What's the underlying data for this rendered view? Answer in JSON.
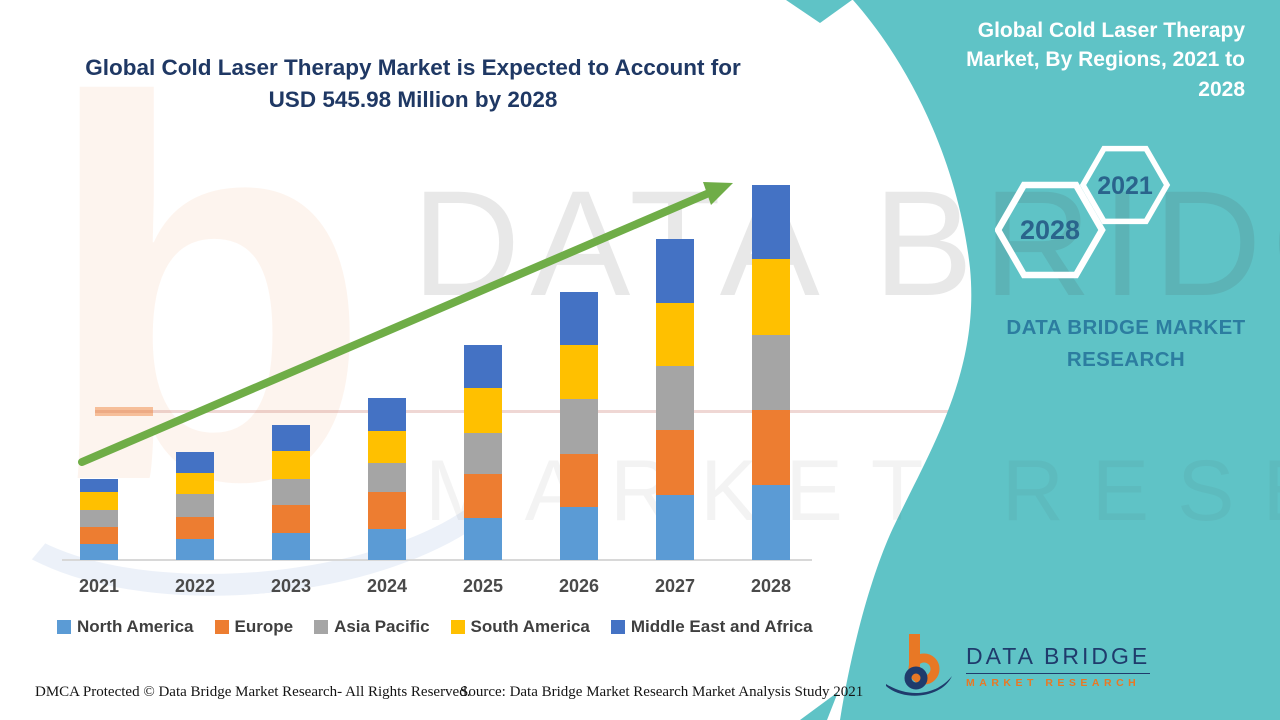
{
  "header": {
    "title": "Global Cold Laser Therapy Market is Expected to Account for USD 545.98 Million by 2028"
  },
  "sidebar": {
    "title": "Global Cold Laser Therapy Market, By Regions, 2021 to 2028",
    "hexagons": {
      "start_year": "2021",
      "end_year": "2028"
    },
    "brand_text": "DATA BRIDGE MARKET RESEARCH",
    "logo": {
      "name": "DATA BRIDGE",
      "subname": "MARKET RESEARCH"
    }
  },
  "watermarks": {
    "big_text_line1": "DATA BRIDGE",
    "big_text_line2": "MARKET RESEARCH",
    "letter_b": "b"
  },
  "footer": {
    "left": "DMCA Protected © Data Bridge Market Research- All Rights Reserved.",
    "right": "Source: Data Bridge Market Research Market Analysis Study 2021"
  },
  "colors": {
    "teal": "#5FC3C6",
    "title_navy": "#1F3864",
    "arrow_green": "#6FAD47",
    "hex_year_text": "#2A648C",
    "brand_text": "#2C7DA0",
    "logo_navy": "#1F3B6C",
    "logo_orange": "#E87825"
  },
  "chart_data": {
    "type": "bar",
    "stacked": true,
    "title": "Global Cold Laser Therapy Market, By Regions, 2021 to 2028",
    "unit": "USD Million",
    "categories": [
      "2021",
      "2022",
      "2023",
      "2024",
      "2025",
      "2026",
      "2027",
      "2028"
    ],
    "series": [
      {
        "name": "North America",
        "color": "#5B9BD5",
        "values": [
          23.3,
          30.6,
          39.3,
          45.1,
          61.2,
          77.2,
          94.6,
          109.2
        ]
      },
      {
        "name": "Europe",
        "color": "#ED7D31",
        "values": [
          24.8,
          32.0,
          40.8,
          53.9,
          64.1,
          77.2,
          94.6,
          109.2
        ]
      },
      {
        "name": "Asia Pacific",
        "color": "#A5A5A5",
        "values": [
          24.8,
          33.5,
          37.9,
          42.2,
          59.7,
          80.1,
          93.2,
          109.2
        ]
      },
      {
        "name": "South America",
        "color": "#FFC000",
        "values": [
          26.2,
          30.6,
          40.8,
          46.6,
          65.5,
          78.6,
          91.7,
          110.7
        ]
      },
      {
        "name": "Middle East and Africa",
        "color": "#4472C4",
        "values": [
          18.9,
          30.6,
          37.9,
          48.1,
          62.6,
          77.2,
          93.2,
          107.68
        ]
      }
    ],
    "totals": [
      118.0,
      157.3,
      196.7,
      235.9,
      313.1,
      390.3,
      467.3,
      545.98
    ],
    "ylim": [
      0,
      560
    ],
    "gridlines": false,
    "legend_position": "bottom",
    "annotations": [
      "green upward trend arrow across bars"
    ]
  }
}
